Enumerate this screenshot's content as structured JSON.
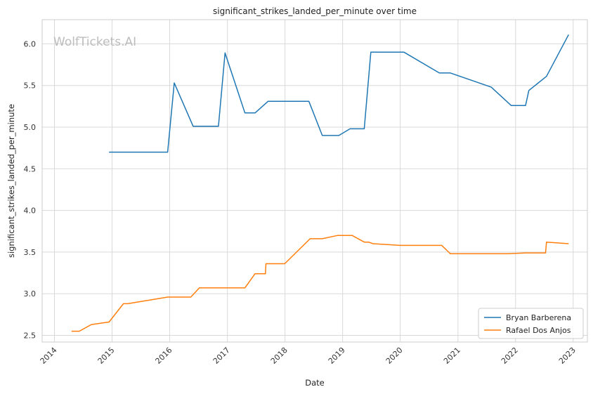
{
  "chart_data": {
    "type": "line",
    "title": "significant_strikes_landed_per_minute over time",
    "xlabel": "Date",
    "ylabel": "significant_strikes_landed_per_minute",
    "watermark": "WolfTickets.AI",
    "x_ticks": [
      "2014",
      "2015",
      "2016",
      "2017",
      "2018",
      "2019",
      "2020",
      "2021",
      "2022",
      "2023"
    ],
    "y_ticks": [
      "2.5",
      "3.0",
      "3.5",
      "4.0",
      "4.5",
      "5.0",
      "5.5",
      "6.0"
    ],
    "xlim": [
      "2013-10-15",
      "2023-04-01"
    ],
    "ylim": [
      2.42,
      6.29
    ],
    "grid": true,
    "legend_position": "lower right",
    "series": [
      {
        "name": "Bryan Barberena",
        "color": "#1f77b4",
        "points": [
          [
            "2014-12-13",
            4.7
          ],
          [
            "2015-12-19",
            4.7
          ],
          [
            "2016-01-30",
            5.53
          ],
          [
            "2016-05-29",
            5.01
          ],
          [
            "2016-11-05",
            5.01
          ],
          [
            "2016-12-17",
            5.89
          ],
          [
            "2017-04-22",
            5.17
          ],
          [
            "2017-06-25",
            5.17
          ],
          [
            "2017-09-16",
            5.31
          ],
          [
            "2018-06-01",
            5.31
          ],
          [
            "2018-08-25",
            4.9
          ],
          [
            "2018-12-08",
            4.9
          ],
          [
            "2019-02-17",
            4.98
          ],
          [
            "2019-05-18",
            4.98
          ],
          [
            "2019-06-29",
            5.9
          ],
          [
            "2020-01-25",
            5.9
          ],
          [
            "2020-09-05",
            5.65
          ],
          [
            "2020-11-14",
            5.65
          ],
          [
            "2021-07-31",
            5.48
          ],
          [
            "2021-12-04",
            5.26
          ],
          [
            "2022-03-05",
            5.26
          ],
          [
            "2022-03-26",
            5.44
          ],
          [
            "2022-07-16",
            5.61
          ],
          [
            "2022-12-03",
            6.11
          ]
        ]
      },
      {
        "name": "Rafael Dos Anjos",
        "color": "#ff7f0e",
        "points": [
          [
            "2014-04-19",
            2.55
          ],
          [
            "2014-06-07",
            2.55
          ],
          [
            "2014-08-23",
            2.63
          ],
          [
            "2014-12-13",
            2.66
          ],
          [
            "2015-03-14",
            2.88
          ],
          [
            "2015-04-11",
            2.88
          ],
          [
            "2015-12-19",
            2.96
          ],
          [
            "2016-05-14",
            2.96
          ],
          [
            "2016-07-07",
            3.07
          ],
          [
            "2017-04-22",
            3.07
          ],
          [
            "2017-06-25",
            3.24
          ],
          [
            "2017-08-30",
            3.24
          ],
          [
            "2017-09-02",
            3.36
          ],
          [
            "2017-12-30",
            3.36
          ],
          [
            "2018-06-09",
            3.66
          ],
          [
            "2018-08-25",
            3.66
          ],
          [
            "2018-12-01",
            3.7
          ],
          [
            "2019-03-02",
            3.7
          ],
          [
            "2019-05-18",
            3.62
          ],
          [
            "2019-06-15",
            3.62
          ],
          [
            "2019-07-13",
            3.6
          ],
          [
            "2020-01-01",
            3.58
          ],
          [
            "2020-09-20",
            3.58
          ],
          [
            "2020-11-14",
            3.48
          ],
          [
            "2021-11-13",
            3.48
          ],
          [
            "2022-03-05",
            3.49
          ],
          [
            "2022-07-10",
            3.49
          ],
          [
            "2022-07-16",
            3.62
          ],
          [
            "2022-12-03",
            3.6
          ]
        ]
      }
    ]
  }
}
